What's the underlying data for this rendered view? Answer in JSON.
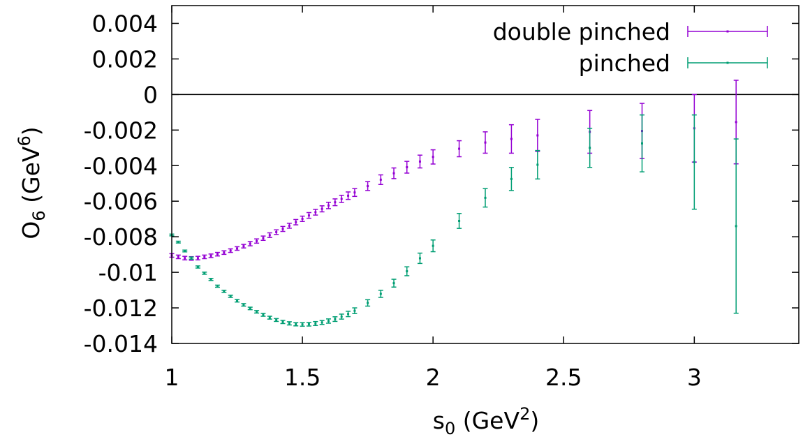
{
  "chart_data": {
    "type": "scatter",
    "xlabel": {
      "base": "s",
      "sub": "0",
      "unit_open": " (GeV",
      "sup": "2",
      "unit_close": ")"
    },
    "ylabel": {
      "base": "O",
      "sub": "6",
      "unit_open": " (GeV",
      "sup": "6",
      "unit_close": ")"
    },
    "xlim": [
      1.0,
      3.4
    ],
    "ylim": [
      -0.014,
      0.005
    ],
    "x_ticks": [
      1,
      1.5,
      2,
      2.5,
      3
    ],
    "x_tick_labels": [
      "1",
      "1.5",
      "2",
      "2.5",
      "3"
    ],
    "y_ticks": [
      0.004,
      0.002,
      0,
      -0.002,
      -0.004,
      -0.006,
      -0.008,
      -0.01,
      -0.012,
      -0.014
    ],
    "y_tick_labels": [
      "0.004",
      "0.002",
      "0",
      "-0.002",
      "-0.004",
      "-0.006",
      "-0.008",
      "-0.01",
      "-0.012",
      "-0.014"
    ],
    "zero_line": true,
    "grid": false,
    "legend_position": "top-right",
    "series": [
      {
        "name": "double pinched",
        "color": "#9400d3",
        "points": [
          [
            1.0,
            -0.00905,
            0.0001
          ],
          [
            1.025,
            -0.00913,
            0.0001
          ],
          [
            1.05,
            -0.0092,
            0.0001
          ],
          [
            1.075,
            -0.00922,
            0.0001
          ],
          [
            1.1,
            -0.0092,
            0.0001
          ],
          [
            1.125,
            -0.00913,
            0.0001
          ],
          [
            1.15,
            -0.00907,
            0.0001
          ],
          [
            1.175,
            -0.00898,
            0.0001
          ],
          [
            1.2,
            -0.00889,
            0.0001
          ],
          [
            1.225,
            -0.00878,
            0.0001
          ],
          [
            1.25,
            -0.00866,
            0.0001
          ],
          [
            1.275,
            -0.00853,
            0.0001
          ],
          [
            1.3,
            -0.00839,
            0.00012
          ],
          [
            1.325,
            -0.00824,
            0.00012
          ],
          [
            1.35,
            -0.00808,
            0.00012
          ],
          [
            1.375,
            -0.00791,
            0.00013
          ],
          [
            1.4,
            -0.00774,
            0.00013
          ],
          [
            1.425,
            -0.00756,
            0.00014
          ],
          [
            1.45,
            -0.00738,
            0.00014
          ],
          [
            1.475,
            -0.00718,
            0.00015
          ],
          [
            1.5,
            -0.00699,
            0.00015
          ],
          [
            1.525,
            -0.0068,
            0.00016
          ],
          [
            1.55,
            -0.00662,
            0.00016
          ],
          [
            1.575,
            -0.00643,
            0.00017
          ],
          [
            1.6,
            -0.00624,
            0.00018
          ],
          [
            1.625,
            -0.00606,
            0.00019
          ],
          [
            1.65,
            -0.00587,
            0.0002
          ],
          [
            1.675,
            -0.00569,
            0.00021
          ],
          [
            1.7,
            -0.00551,
            0.00022
          ],
          [
            1.75,
            -0.00515,
            0.00025
          ],
          [
            1.8,
            -0.00479,
            0.00027
          ],
          [
            1.85,
            -0.00443,
            0.0003
          ],
          [
            1.9,
            -0.00409,
            0.00033
          ],
          [
            1.95,
            -0.00377,
            0.00036
          ],
          [
            2.0,
            -0.00351,
            0.0004
          ],
          [
            2.1,
            -0.00305,
            0.00045
          ],
          [
            2.2,
            -0.0027,
            0.0006
          ],
          [
            2.3,
            -0.0025,
            0.0008
          ],
          [
            2.4,
            -0.0023,
            0.0009
          ],
          [
            2.6,
            -0.0021,
            0.0012
          ],
          [
            2.8,
            -0.00205,
            0.00155
          ],
          [
            3.0,
            -0.0019,
            0.0019
          ],
          [
            3.16,
            -0.00155,
            0.00235
          ]
        ]
      },
      {
        "name": "pinched",
        "color": "#009e73",
        "points": [
          [
            1.0,
            -0.0079,
            5e-05
          ],
          [
            1.025,
            -0.0083,
            5e-05
          ],
          [
            1.05,
            -0.0088,
            5e-05
          ],
          [
            1.075,
            -0.0092,
            6e-05
          ],
          [
            1.1,
            -0.0097,
            6e-05
          ],
          [
            1.125,
            -0.01005,
            6e-05
          ],
          [
            1.15,
            -0.0104,
            6e-05
          ],
          [
            1.175,
            -0.01078,
            6e-05
          ],
          [
            1.2,
            -0.01107,
            6e-05
          ],
          [
            1.225,
            -0.01135,
            6e-05
          ],
          [
            1.25,
            -0.0116,
            7e-05
          ],
          [
            1.275,
            -0.01183,
            7e-05
          ],
          [
            1.3,
            -0.01203,
            7e-05
          ],
          [
            1.325,
            -0.01222,
            7e-05
          ],
          [
            1.35,
            -0.01239,
            8e-05
          ],
          [
            1.375,
            -0.01255,
            8e-05
          ],
          [
            1.4,
            -0.01268,
            8e-05
          ],
          [
            1.425,
            -0.01279,
            9e-05
          ],
          [
            1.45,
            -0.01287,
            9e-05
          ],
          [
            1.475,
            -0.01292,
            9e-05
          ],
          [
            1.5,
            -0.01293,
            0.0001
          ],
          [
            1.525,
            -0.01292,
            0.0001
          ],
          [
            1.55,
            -0.01288,
            0.00011
          ],
          [
            1.575,
            -0.01282,
            0.00011
          ],
          [
            1.6,
            -0.01274,
            0.00012
          ],
          [
            1.625,
            -0.01263,
            0.00013
          ],
          [
            1.65,
            -0.01249,
            0.00014
          ],
          [
            1.675,
            -0.01234,
            0.00015
          ],
          [
            1.7,
            -0.01216,
            0.00016
          ],
          [
            1.75,
            -0.01172,
            0.00018
          ],
          [
            1.8,
            -0.01121,
            0.0002
          ],
          [
            1.85,
            -0.01061,
            0.00022
          ],
          [
            1.9,
            -0.00994,
            0.00025
          ],
          [
            1.95,
            -0.00921,
            0.00029
          ],
          [
            2.0,
            -0.00851,
            0.00033
          ],
          [
            2.1,
            -0.00711,
            0.00042
          ],
          [
            2.2,
            -0.00581,
            0.00052
          ],
          [
            2.3,
            -0.00475,
            0.00065
          ],
          [
            2.4,
            -0.00395,
            0.0008
          ],
          [
            2.6,
            -0.003,
            0.0011
          ],
          [
            2.8,
            -0.00275,
            0.0016
          ],
          [
            3.0,
            -0.0038,
            0.00265
          ],
          [
            3.16,
            -0.0074,
            0.0049
          ]
        ]
      }
    ]
  }
}
